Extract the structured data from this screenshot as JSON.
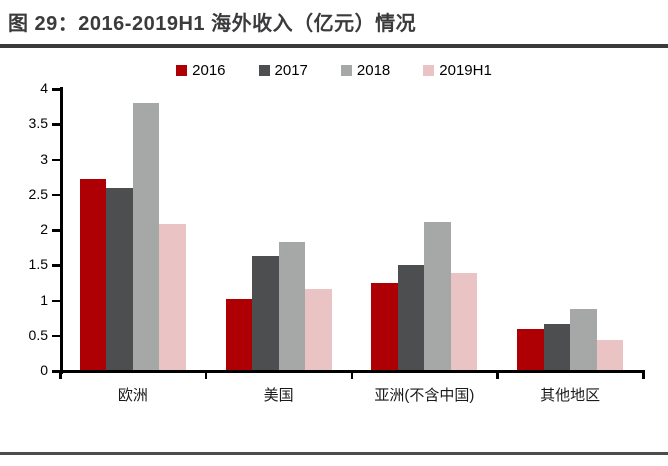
{
  "header": {
    "title": "图 29：2016-2019H1 海外收入（亿元）情况"
  },
  "chart_data": {
    "type": "bar",
    "title": "图 29：2016-2019H1 海外收入（亿元）情况",
    "categories": [
      "欧洲",
      "美国",
      "亚洲(不含中国)",
      "其他地区"
    ],
    "series": [
      {
        "name": "2016",
        "color": "#AE0004",
        "values": [
          2.72,
          1.02,
          1.25,
          0.59
        ]
      },
      {
        "name": "2017",
        "color": "#4C4E50",
        "values": [
          2.6,
          1.63,
          1.5,
          0.66
        ]
      },
      {
        "name": "2018",
        "color": "#A6A7A7",
        "values": [
          3.8,
          1.83,
          2.11,
          0.88
        ]
      },
      {
        "name": "2019H1",
        "color": "#EAC3C5",
        "values": [
          2.08,
          1.17,
          1.39,
          0.44
        ]
      }
    ],
    "ylim": [
      0,
      4
    ],
    "y_tick_labels": [
      "0",
      "0.5",
      "1",
      "1.5",
      "2",
      "2.5",
      "3",
      "3.5",
      "4"
    ],
    "xlabel": "",
    "ylabel": "",
    "grid": false,
    "legend_position": "top-center",
    "unit": "亿元"
  },
  "colors": {
    "background": "#FFFFFF",
    "title_text": "#3B3B3D",
    "top_rule": "#3A3A3C",
    "bottom_rule": "#4D4D4D",
    "axis": "#000000"
  }
}
